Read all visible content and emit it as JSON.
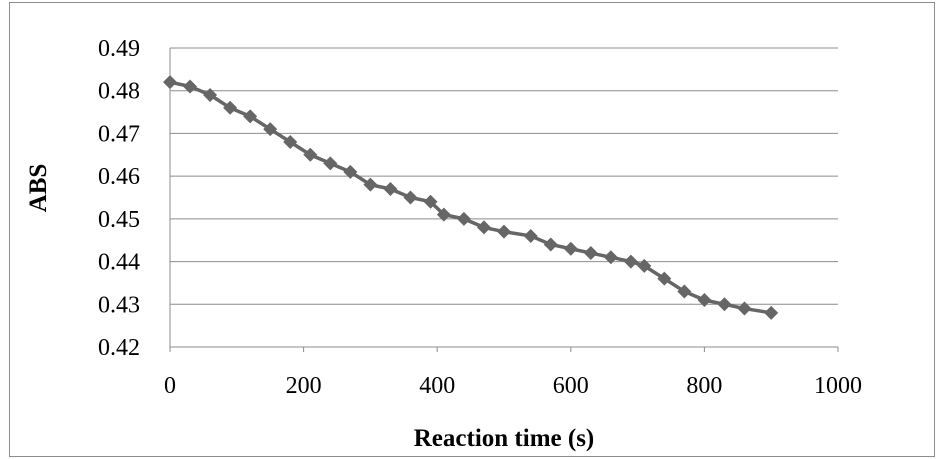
{
  "chart_data": {
    "type": "line",
    "title": "",
    "xlabel": "Reaction time  (s)",
    "ylabel": "ABS",
    "xlim": [
      0,
      1000
    ],
    "ylim": [
      0.42,
      0.49
    ],
    "xticks": [
      "0",
      "200",
      "400",
      "600",
      "800",
      "1000"
    ],
    "yticks": [
      "0.42",
      "0.43",
      "0.44",
      "0.45",
      "0.46",
      "0.47",
      "0.48",
      "0.49"
    ],
    "grid": "horizontal",
    "legend": "none",
    "series": [
      {
        "marker": "diamond",
        "color": "#666666",
        "x": [
          0,
          30,
          60,
          90,
          120,
          150,
          180,
          210,
          240,
          270,
          300,
          330,
          360,
          390,
          410,
          440,
          470,
          500,
          540,
          570,
          600,
          630,
          660,
          690,
          710,
          740,
          770,
          800,
          830,
          860,
          900
        ],
        "y": [
          0.482,
          0.481,
          0.479,
          0.476,
          0.474,
          0.471,
          0.468,
          0.465,
          0.463,
          0.461,
          0.458,
          0.457,
          0.455,
          0.454,
          0.451,
          0.45,
          0.448,
          0.447,
          0.446,
          0.444,
          0.443,
          0.442,
          0.441,
          0.44,
          0.439,
          0.436,
          0.433,
          0.431,
          0.43,
          0.429,
          0.428
        ]
      }
    ]
  }
}
